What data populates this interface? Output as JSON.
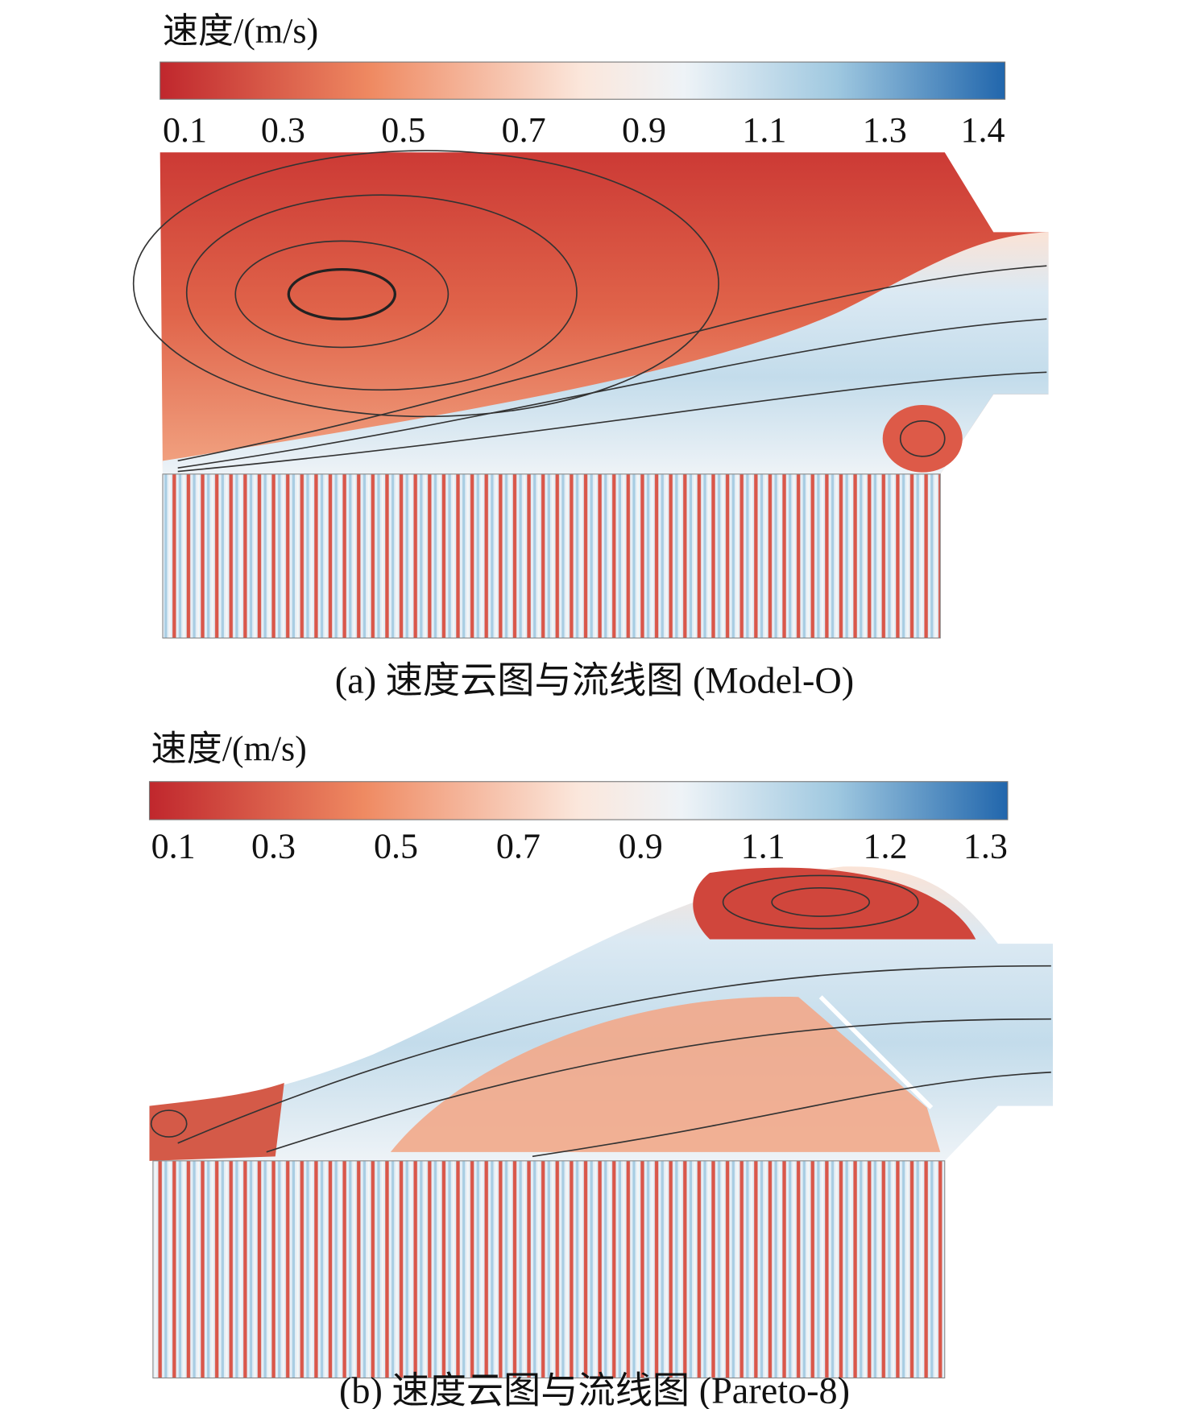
{
  "panels": [
    {
      "colorbar": {
        "label": "速度/(m/s)",
        "ticks": [
          0.1,
          0.3,
          0.5,
          0.7,
          0.9,
          1.1,
          1.3,
          1.4
        ]
      },
      "caption": "(a) 速度云图与流线图 (Model-O)"
    },
    {
      "colorbar": {
        "label": "速度/(m/s)",
        "ticks": [
          0.1,
          0.3,
          0.5,
          0.7,
          0.9,
          1.1,
          1.2,
          1.3
        ]
      },
      "caption": "(b) 速度云图与流线图 (Pareto-8)"
    }
  ]
}
